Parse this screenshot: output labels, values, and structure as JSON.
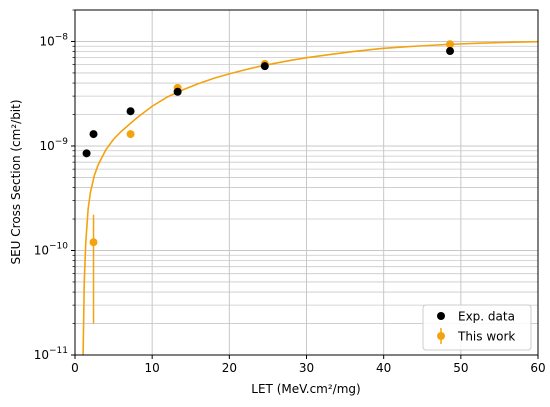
{
  "chart_data": {
    "type": "scatter",
    "xlabel": "LET (MeV.cm²/mg)",
    "ylabel": "SEU Cross Section (cm²/bit)",
    "xlim": [
      0,
      60
    ],
    "ylim": [
      1e-11,
      2e-08
    ],
    "yscale": "log",
    "grid": true,
    "legend_position": "lower-right",
    "x_ticks": [
      {
        "value": 0,
        "label": "0"
      },
      {
        "value": 10,
        "label": "10"
      },
      {
        "value": 20,
        "label": "20"
      },
      {
        "value": 30,
        "label": "30"
      },
      {
        "value": 40,
        "label": "40"
      },
      {
        "value": 50,
        "label": "50"
      },
      {
        "value": 60,
        "label": "60"
      }
    ],
    "y_ticks": [
      {
        "value": 1e-11,
        "mant": "10",
        "exp": "−11"
      },
      {
        "value": 1e-10,
        "mant": "10",
        "exp": "−10"
      },
      {
        "value": 1e-09,
        "mant": "10",
        "exp": "−9"
      },
      {
        "value": 1e-08,
        "mant": "10",
        "exp": "−8"
      }
    ],
    "series": [
      {
        "name": "Exp. data",
        "color": "#000000",
        "marker": "circle",
        "points": [
          {
            "x": 1.5,
            "y": 8.5e-10
          },
          {
            "x": 2.4,
            "y": 1.3e-09
          },
          {
            "x": 7.2,
            "y": 2.15e-09
          },
          {
            "x": 13.3,
            "y": 3.3e-09
          },
          {
            "x": 24.6,
            "y": 5.8e-09
          },
          {
            "x": 48.6,
            "y": 8.1e-09
          }
        ]
      },
      {
        "name": "This work",
        "color": "#f5a20f",
        "marker": "circle-errorbar",
        "points": [
          {
            "x": 2.4,
            "y": 1.2e-10,
            "ylow": 2e-11,
            "yhigh": 2.2e-10
          },
          {
            "x": 7.2,
            "y": 1.3e-09
          },
          {
            "x": 13.3,
            "y": 3.6e-09
          },
          {
            "x": 24.6,
            "y": 6.1e-09
          },
          {
            "x": 48.6,
            "y": 9.4e-09
          }
        ]
      }
    ],
    "fit_curve": {
      "color": "#f5a20f",
      "points": [
        {
          "x": 1.05,
          "y": 1e-11
        },
        {
          "x": 1.2,
          "y": 5e-11
        },
        {
          "x": 1.4,
          "y": 1.2e-10
        },
        {
          "x": 1.7,
          "y": 2.5e-10
        },
        {
          "x": 2.0,
          "y": 3.6e-10
        },
        {
          "x": 2.5,
          "y": 5.2e-10
        },
        {
          "x": 3.0,
          "y": 6.6e-10
        },
        {
          "x": 4.0,
          "y": 9.2e-10
        },
        {
          "x": 5.0,
          "y": 1.16e-09
        },
        {
          "x": 6.0,
          "y": 1.38e-09
        },
        {
          "x": 7.0,
          "y": 1.6e-09
        },
        {
          "x": 8.0,
          "y": 1.85e-09
        },
        {
          "x": 10.0,
          "y": 2.4e-09
        },
        {
          "x": 12.0,
          "y": 2.95e-09
        },
        {
          "x": 14.0,
          "y": 3.45e-09
        },
        {
          "x": 16.0,
          "y": 3.95e-09
        },
        {
          "x": 18.0,
          "y": 4.45e-09
        },
        {
          "x": 20.0,
          "y": 4.9e-09
        },
        {
          "x": 22.0,
          "y": 5.35e-09
        },
        {
          "x": 24.0,
          "y": 5.8e-09
        },
        {
          "x": 26.0,
          "y": 6.2e-09
        },
        {
          "x": 28.0,
          "y": 6.6e-09
        },
        {
          "x": 30.0,
          "y": 7e-09
        },
        {
          "x": 33.0,
          "y": 7.5e-09
        },
        {
          "x": 36.0,
          "y": 8e-09
        },
        {
          "x": 40.0,
          "y": 8.6e-09
        },
        {
          "x": 44.0,
          "y": 9e-09
        },
        {
          "x": 48.0,
          "y": 9.35e-09
        },
        {
          "x": 52.0,
          "y": 9.6e-09
        },
        {
          "x": 56.0,
          "y": 9.8e-09
        },
        {
          "x": 60.0,
          "y": 9.95e-09
        }
      ]
    }
  }
}
